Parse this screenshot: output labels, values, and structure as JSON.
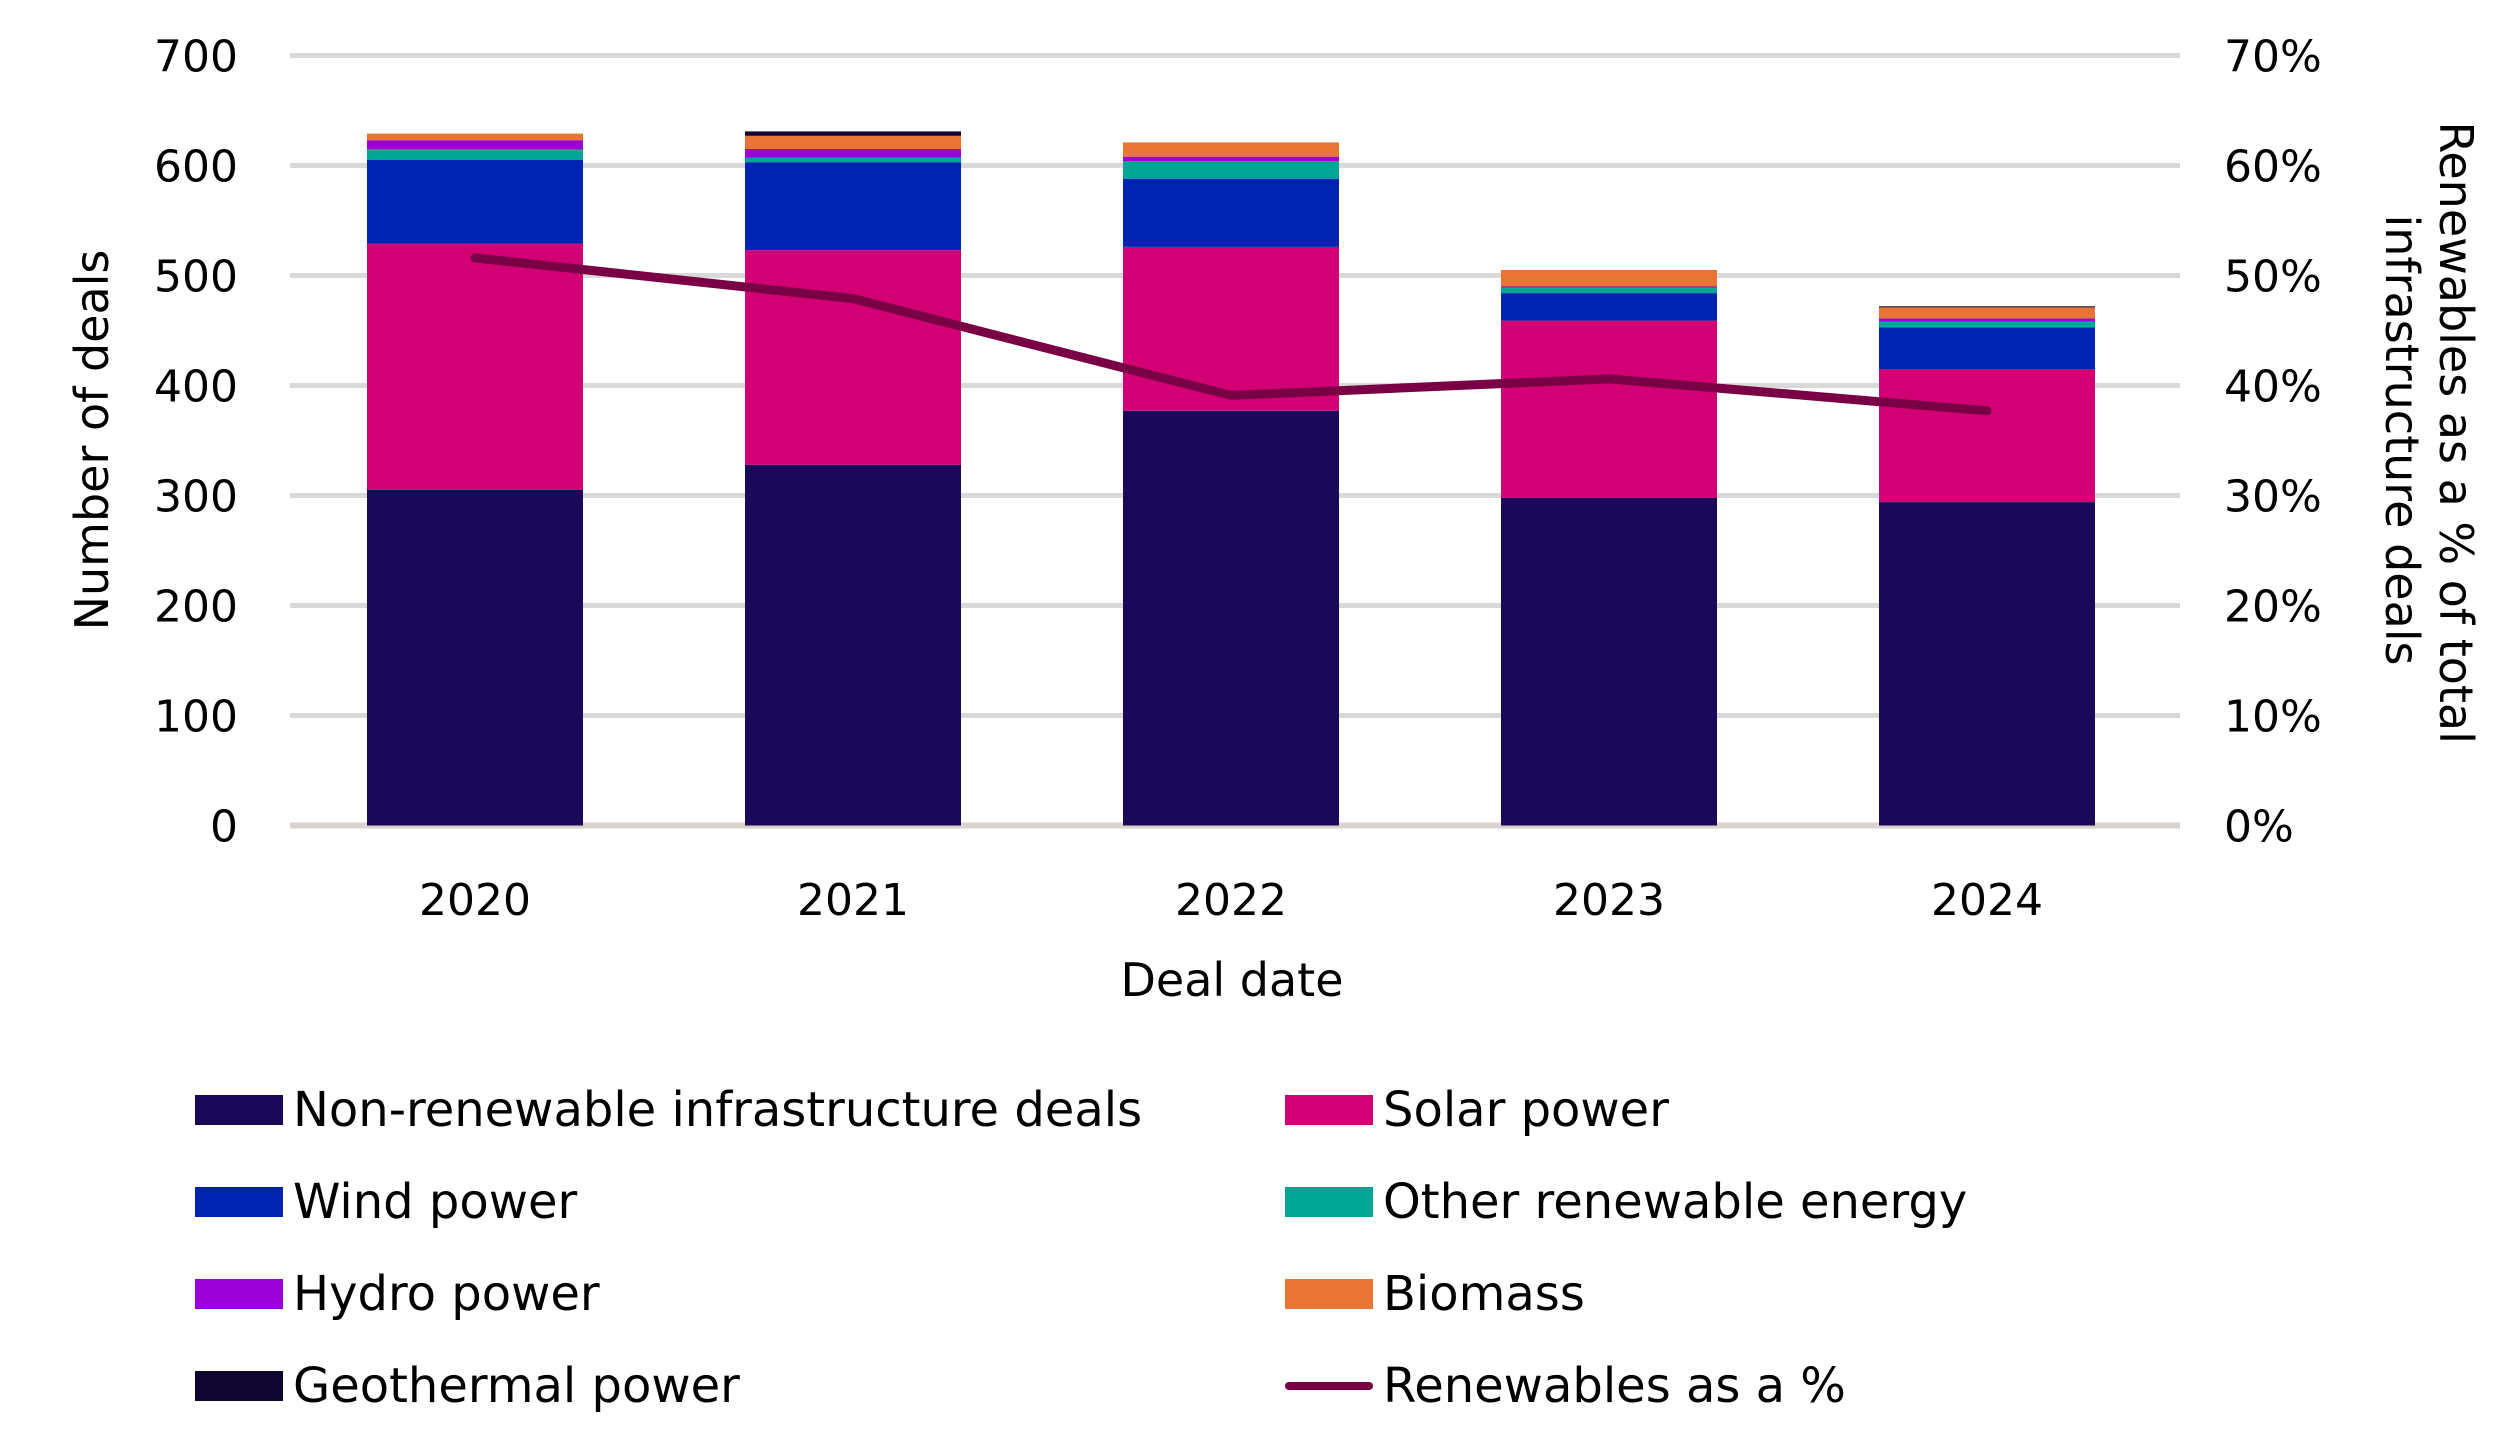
{
  "chart_data": {
    "type": "bar",
    "stacked": true,
    "title": "",
    "xlabel": "Deal date",
    "ylabel": "Number of deals",
    "y2label": "Renewables as a % of total infrastructure deals",
    "ylim": [
      0,
      700
    ],
    "y2lim": [
      0,
      70
    ],
    "yticks": [
      "0",
      "100",
      "200",
      "300",
      "400",
      "500",
      "600",
      "700"
    ],
    "y2ticks": [
      "0%",
      "10%",
      "20%",
      "30%",
      "40%",
      "50%",
      "60%",
      "70%"
    ],
    "grid": true,
    "legend_position": "bottom",
    "categories": [
      "2020",
      "2021",
      "2022",
      "2023",
      "2024"
    ],
    "series": [
      {
        "name": "Non-renewable infrastructure deals",
        "color": "#1a0858",
        "values": [
          305,
          328,
          377,
          298,
          294
        ]
      },
      {
        "name": "Solar power",
        "color": "#d20074",
        "values": [
          224,
          195,
          149,
          161,
          121
        ]
      },
      {
        "name": "Wind power",
        "color": "#0023b4",
        "values": [
          76,
          80,
          62,
          25,
          38
        ]
      },
      {
        "name": "Other renewable energy",
        "color": "#00a596",
        "values": [
          10,
          4,
          16,
          5,
          5
        ]
      },
      {
        "name": "Hydro power",
        "color": "#9b00d9",
        "values": [
          8,
          8,
          4,
          1,
          3
        ]
      },
      {
        "name": "Biomass",
        "color": "#e87435",
        "values": [
          6,
          12,
          13,
          15,
          10
        ]
      },
      {
        "name": "Geothermal power",
        "color": "#10052e",
        "values": [
          0,
          4,
          0,
          0,
          1
        ]
      }
    ],
    "line_series": {
      "name": "Renewables as a %",
      "color": "#7a0046",
      "axis": "right",
      "values": [
        51.6,
        47.9,
        39.1,
        40.6,
        37.7
      ]
    }
  },
  "legend": [
    {
      "label": "Non-renewable infrastructure deals",
      "color": "#1a0858",
      "kind": "box"
    },
    {
      "label": "Solar power",
      "color": "#d20074",
      "kind": "box"
    },
    {
      "label": "Wind power",
      "color": "#0023b4",
      "kind": "box"
    },
    {
      "label": "Other renewable energy",
      "color": "#00a596",
      "kind": "box"
    },
    {
      "label": "Hydro power",
      "color": "#9b00d9",
      "kind": "box"
    },
    {
      "label": "Biomass",
      "color": "#e87435",
      "kind": "box"
    },
    {
      "label": "Geothermal power",
      "color": "#10052e",
      "kind": "box"
    },
    {
      "label": "Renewables as a %",
      "color": "#7a0046",
      "kind": "line"
    }
  ],
  "colors": {
    "gridline": "#d9d9d9",
    "axis": "#d9d3cf"
  }
}
